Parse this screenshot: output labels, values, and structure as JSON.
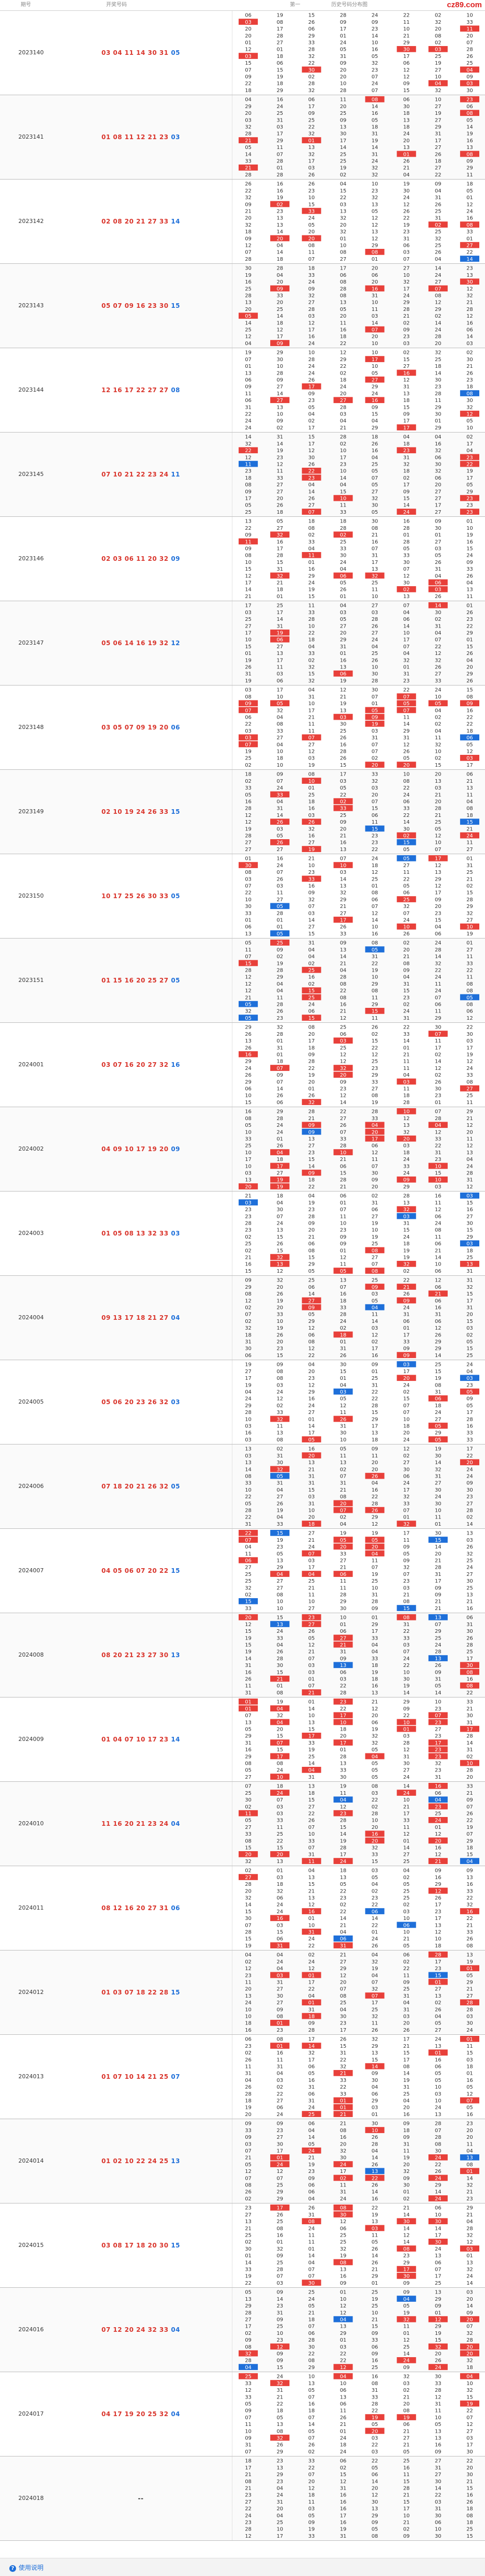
{
  "brand": "cz89.com",
  "header": {
    "period_label": "期号",
    "draw_label": "开奖号码",
    "grid_title": "历史号码分布图",
    "grid_subtitle": "第一"
  },
  "colors": {
    "red_hit": "#e8403a",
    "blue_hit": "#1e6fd9",
    "gray_hit": "#888888",
    "cell_bg": "#ffffff",
    "number_text": "#333333"
  },
  "periods": [
    {
      "id": "2023140",
      "draw": [
        "03",
        "04",
        "11",
        "14",
        "30",
        "31"
      ],
      "blue": "05"
    },
    {
      "id": "2023141",
      "draw": [
        "01",
        "08",
        "11",
        "12",
        "21",
        "23"
      ],
      "blue": "03"
    },
    {
      "id": "2023142",
      "draw": [
        "02",
        "08",
        "20",
        "21",
        "27",
        "33"
      ],
      "blue": "14"
    },
    {
      "id": "2023143",
      "draw": [
        "05",
        "07",
        "09",
        "16",
        "23",
        "30"
      ],
      "blue": "15"
    },
    {
      "id": "2023144",
      "draw": [
        "12",
        "16",
        "17",
        "22",
        "27",
        "27"
      ],
      "blue": "08"
    },
    {
      "id": "2023145",
      "draw": [
        "07",
        "10",
        "21",
        "22",
        "23",
        "24"
      ],
      "blue": "11"
    },
    {
      "id": "2023146",
      "draw": [
        "02",
        "03",
        "06",
        "11",
        "20",
        "32"
      ],
      "blue": "09"
    },
    {
      "id": "2023147",
      "draw": [
        "05",
        "06",
        "14",
        "16",
        "19",
        "32"
      ],
      "blue": "12"
    },
    {
      "id": "2023148",
      "draw": [
        "03",
        "05",
        "07",
        "09",
        "19",
        "20"
      ],
      "blue": "06"
    },
    {
      "id": "2023149",
      "draw": [
        "02",
        "10",
        "19",
        "24",
        "26",
        "33"
      ],
      "blue": "15"
    },
    {
      "id": "2023150",
      "draw": [
        "10",
        "17",
        "25",
        "26",
        "30",
        "33"
      ],
      "blue": "05"
    },
    {
      "id": "2023151",
      "draw": [
        "01",
        "15",
        "16",
        "20",
        "25",
        "27"
      ],
      "blue": "05"
    },
    {
      "id": "2024001",
      "draw": [
        "03",
        "07",
        "16",
        "20",
        "27",
        "32"
      ],
      "blue": "16"
    },
    {
      "id": "2024002",
      "draw": [
        "04",
        "09",
        "10",
        "17",
        "19",
        "20"
      ],
      "blue": "09"
    },
    {
      "id": "2024003",
      "draw": [
        "01",
        "05",
        "08",
        "13",
        "32",
        "33"
      ],
      "blue": "03"
    },
    {
      "id": "2024004",
      "draw": [
        "09",
        "13",
        "17",
        "18",
        "21",
        "27"
      ],
      "blue": "04"
    },
    {
      "id": "2024005",
      "draw": [
        "05",
        "06",
        "20",
        "23",
        "26",
        "32"
      ],
      "blue": "03"
    },
    {
      "id": "2024006",
      "draw": [
        "07",
        "18",
        "20",
        "21",
        "26",
        "32"
      ],
      "blue": "05"
    },
    {
      "id": "2024007",
      "draw": [
        "04",
        "05",
        "06",
        "07",
        "20",
        "22"
      ],
      "blue": "15"
    },
    {
      "id": "2024008",
      "draw": [
        "08",
        "20",
        "21",
        "23",
        "27",
        "30"
      ],
      "blue": "13"
    },
    {
      "id": "2024009",
      "draw": [
        "01",
        "04",
        "07",
        "10",
        "17",
        "23"
      ],
      "blue": "14"
    },
    {
      "id": "2024010",
      "draw": [
        "11",
        "16",
        "20",
        "21",
        "23",
        "24"
      ],
      "blue": "04"
    },
    {
      "id": "2024011",
      "draw": [
        "08",
        "12",
        "16",
        "20",
        "27",
        "31"
      ],
      "blue": "06"
    },
    {
      "id": "2024012",
      "draw": [
        "01",
        "03",
        "07",
        "18",
        "22",
        "28"
      ],
      "blue": "15"
    },
    {
      "id": "2024013",
      "draw": [
        "01",
        "07",
        "10",
        "14",
        "21",
        "25"
      ],
      "blue": "07"
    },
    {
      "id": "2024014",
      "draw": [
        "01",
        "02",
        "10",
        "22",
        "24",
        "25"
      ],
      "blue": "13"
    },
    {
      "id": "2024015",
      "draw": [
        "03",
        "08",
        "17",
        "18",
        "20",
        "30"
      ],
      "blue": "15"
    },
    {
      "id": "2024016",
      "draw": [
        "07",
        "12",
        "20",
        "24",
        "32",
        "33"
      ],
      "blue": "04"
    },
    {
      "id": "2024017",
      "draw": [
        "04",
        "17",
        "19",
        "20",
        "25",
        "32"
      ],
      "blue": "04"
    },
    {
      "id": "2024018",
      "draw": [],
      "blue": "--"
    }
  ],
  "grid_numbers": [
    "01",
    "02",
    "03",
    "04",
    "05",
    "06",
    "07",
    "08",
    "09",
    "10",
    "11",
    "12",
    "13",
    "14",
    "15",
    "16",
    "17",
    "18",
    "19",
    "20",
    "21",
    "22",
    "23",
    "24",
    "25",
    "26",
    "27",
    "28",
    "29",
    "30",
    "31",
    "32",
    "33"
  ],
  "footer": {
    "help_icon": "question-circle-icon",
    "help_label": "使用说明"
  }
}
